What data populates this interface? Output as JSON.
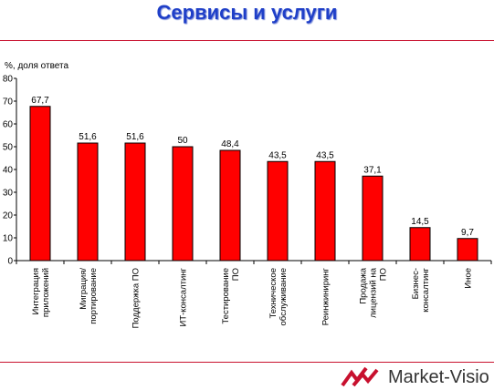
{
  "header": {
    "title": "Сервисы и услуги"
  },
  "logo": {
    "text": "Market-Visio",
    "icon": "market-visio-logo-icon",
    "color": "#c8102e"
  },
  "colors": {
    "bar": "#ff0000",
    "title": "#1f3fc8",
    "rule": "#c8102e"
  },
  "chart_data": {
    "type": "bar",
    "ylabel": "%, доля ответа",
    "xlabel": "",
    "ylim": [
      0,
      80
    ],
    "yticks": [
      0,
      10,
      20,
      30,
      40,
      50,
      60,
      70,
      80
    ],
    "categories": [
      [
        "Интеграция",
        "приложений"
      ],
      [
        "Миграция/",
        "портирование"
      ],
      [
        "Поддержка ПО"
      ],
      [
        "ИТ-консалтинг"
      ],
      [
        "Тестирование",
        "ПО"
      ],
      [
        "Техническое",
        "обслуживание"
      ],
      [
        "Реинжиниринг"
      ],
      [
        "Продажа",
        "лицензий на",
        "ПО"
      ],
      [
        "Бизнес-",
        "консалтинг"
      ],
      [
        "Иное"
      ]
    ],
    "values": [
      67.7,
      51.6,
      51.6,
      50,
      48.4,
      43.5,
      43.5,
      37.1,
      14.5,
      9.7
    ],
    "value_labels": [
      "67,7",
      "51,6",
      "51,6",
      "50",
      "48,4",
      "43,5",
      "43,5",
      "37,1",
      "14,5",
      "9,7"
    ],
    "grid": false,
    "legend": "none"
  }
}
